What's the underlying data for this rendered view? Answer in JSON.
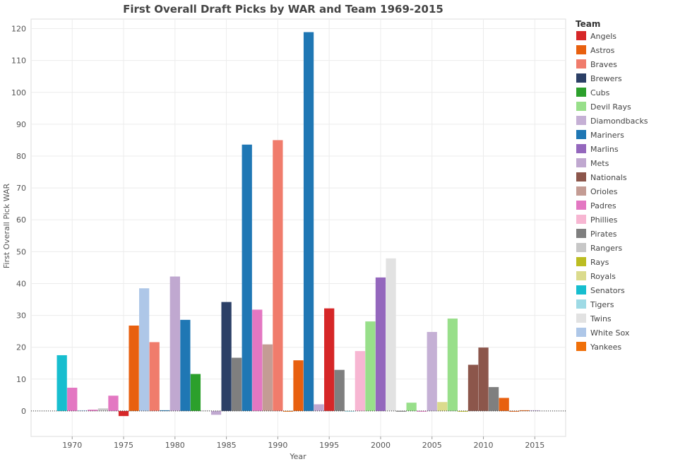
{
  "chart_data": {
    "type": "bar",
    "title": "First Overall Draft Picks by WAR and Team 1969-2015",
    "xlabel": "Year",
    "ylabel": "First Overall Pick WAR",
    "xlim": [
      1966,
      2018
    ],
    "ylim": [
      -8,
      123
    ],
    "yticks": [
      0,
      10,
      20,
      30,
      40,
      50,
      60,
      70,
      80,
      90,
      100,
      110,
      120
    ],
    "xticks": [
      1970,
      1975,
      1980,
      1985,
      1990,
      1995,
      2000,
      2005,
      2010,
      2015
    ],
    "grid": true,
    "legend_title": "Team",
    "legend_position": "right",
    "teams": [
      {
        "name": "Angels",
        "color": "#d62728"
      },
      {
        "name": "Astros",
        "color": "#e8600f"
      },
      {
        "name": "Braves",
        "color": "#f07c6c"
      },
      {
        "name": "Brewers",
        "color": "#2b3f66"
      },
      {
        "name": "Cubs",
        "color": "#2ca02c"
      },
      {
        "name": "Devil Rays",
        "color": "#98df8a"
      },
      {
        "name": "Diamondbacks",
        "color": "#c5b0d5"
      },
      {
        "name": "Mariners",
        "color": "#1f77b4"
      },
      {
        "name": "Marlins",
        "color": "#9467bd"
      },
      {
        "name": "Mets",
        "color": "#c0a8d0"
      },
      {
        "name": "Nationals",
        "color": "#8c564b"
      },
      {
        "name": "Orioles",
        "color": "#c49c94"
      },
      {
        "name": "Padres",
        "color": "#e377c2"
      },
      {
        "name": "Phillies",
        "color": "#f7b6d2"
      },
      {
        "name": "Pirates",
        "color": "#7f7f7f"
      },
      {
        "name": "Rangers",
        "color": "#c7c7c7"
      },
      {
        "name": "Rays",
        "color": "#bcbd22"
      },
      {
        "name": "Royals",
        "color": "#dbdb8d"
      },
      {
        "name": "Senators",
        "color": "#17becf"
      },
      {
        "name": "Tigers",
        "color": "#9edae5"
      },
      {
        "name": "Twins",
        "color": "#e2e2e2"
      },
      {
        "name": "White Sox",
        "color": "#aec7e8"
      },
      {
        "name": "Yankees",
        "color": "#f0700a"
      }
    ],
    "points": [
      {
        "year": 1969,
        "team": "Senators",
        "war": 17.5
      },
      {
        "year": 1970,
        "team": "Padres",
        "war": 7.3
      },
      {
        "year": 1971,
        "team": "White Sox",
        "war": 0.0
      },
      {
        "year": 1972,
        "team": "Padres",
        "war": 0.4
      },
      {
        "year": 1973,
        "team": "Rangers",
        "war": 0.8
      },
      {
        "year": 1974,
        "team": "Padres",
        "war": 4.8
      },
      {
        "year": 1975,
        "team": "Angels",
        "war": -1.6
      },
      {
        "year": 1976,
        "team": "Astros",
        "war": 26.8
      },
      {
        "year": 1977,
        "team": "White Sox",
        "war": 38.5
      },
      {
        "year": 1978,
        "team": "Braves",
        "war": 21.6
      },
      {
        "year": 1979,
        "team": "Mariners",
        "war": 0.0
      },
      {
        "year": 1980,
        "team": "Mets",
        "war": 42.2
      },
      {
        "year": 1981,
        "team": "Mariners",
        "war": 28.6
      },
      {
        "year": 1982,
        "team": "Cubs",
        "war": 11.6
      },
      {
        "year": 1983,
        "team": "Twins",
        "war": 0.0
      },
      {
        "year": 1984,
        "team": "Mets",
        "war": -1.2
      },
      {
        "year": 1985,
        "team": "Brewers",
        "war": 34.2
      },
      {
        "year": 1986,
        "team": "Pirates",
        "war": 16.7
      },
      {
        "year": 1987,
        "team": "Mariners",
        "war": 83.6
      },
      {
        "year": 1988,
        "team": "Padres",
        "war": 31.8
      },
      {
        "year": 1989,
        "team": "Orioles",
        "war": 20.9
      },
      {
        "year": 1990,
        "team": "Braves",
        "war": 85.0
      },
      {
        "year": 1991,
        "team": "Yankees",
        "war": -0.1
      },
      {
        "year": 1992,
        "team": "Astros",
        "war": 15.9
      },
      {
        "year": 1993,
        "team": "Mariners",
        "war": 118.9
      },
      {
        "year": 1994,
        "team": "Mets",
        "war": 2.1
      },
      {
        "year": 1995,
        "team": "Angels",
        "war": 32.2
      },
      {
        "year": 1996,
        "team": "Pirates",
        "war": 12.9
      },
      {
        "year": 1997,
        "team": "Tigers",
        "war": -0.2
      },
      {
        "year": 1998,
        "team": "Phillies",
        "war": 18.8
      },
      {
        "year": 1999,
        "team": "Devil Rays",
        "war": 28.1
      },
      {
        "year": 2000,
        "team": "Marlins",
        "war": 41.9
      },
      {
        "year": 2001,
        "team": "Twins",
        "war": 47.9
      },
      {
        "year": 2002,
        "team": "Pirates",
        "war": -0.1
      },
      {
        "year": 2003,
        "team": "Devil Rays",
        "war": 2.6
      },
      {
        "year": 2004,
        "team": "Padres",
        "war": -0.1
      },
      {
        "year": 2005,
        "team": "Diamondbacks",
        "war": 24.8
      },
      {
        "year": 2006,
        "team": "Royals",
        "war": 2.8
      },
      {
        "year": 2007,
        "team": "Devil Rays",
        "war": 29.0
      },
      {
        "year": 2008,
        "team": "Rays",
        "war": -0.1
      },
      {
        "year": 2009,
        "team": "Nationals",
        "war": 14.5
      },
      {
        "year": 2010,
        "team": "Nationals",
        "war": 19.9
      },
      {
        "year": 2011,
        "team": "Pirates",
        "war": 7.5
      },
      {
        "year": 2012,
        "team": "Astros",
        "war": 4.1
      },
      {
        "year": 2013,
        "team": "Astros",
        "war": -0.1
      },
      {
        "year": 2014,
        "team": "Astros",
        "war": 0.0
      },
      {
        "year": 2015,
        "team": "Diamondbacks",
        "war": 0.0
      }
    ]
  }
}
